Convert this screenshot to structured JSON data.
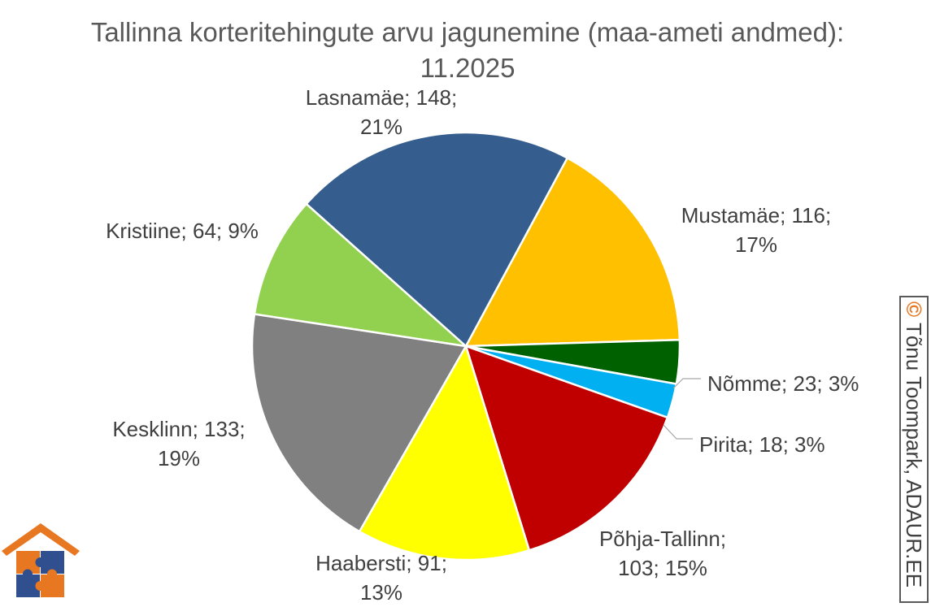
{
  "chart_data": {
    "type": "pie",
    "title": "Tallinna korteritehingute arvu jagunemine (maa-ameti andmed): 11.2025",
    "slices": [
      {
        "label": "Mustamäe",
        "value": 116,
        "percent": "17%",
        "color": "#FFC000",
        "data_label_lines": [
          "Mustamäe; 116;",
          "17%"
        ]
      },
      {
        "label": "Nõmme",
        "value": 23,
        "percent": "3%",
        "color": "#006100",
        "data_label_lines": [
          "Nõmme; 23; 3%"
        ]
      },
      {
        "label": "Pirita",
        "value": 18,
        "percent": "3%",
        "color": "#00B0F0",
        "data_label_lines": [
          "Pirita; 18; 3%"
        ]
      },
      {
        "label": "Põhja-Tallinn",
        "value": 103,
        "percent": "15%",
        "color": "#C00000",
        "data_label_lines": [
          "Põhja-Tallinn;",
          "103; 15%"
        ]
      },
      {
        "label": "Haabersti",
        "value": 91,
        "percent": "13%",
        "color": "#FFFF00",
        "data_label_lines": [
          "Haabersti; 91;",
          "13%"
        ]
      },
      {
        "label": "Kesklinn",
        "value": 133,
        "percent": "19%",
        "color": "#808080",
        "data_label_lines": [
          "Kesklinn; 133;",
          "19%"
        ]
      },
      {
        "label": "Kristiine",
        "value": 64,
        "percent": "9%",
        "color": "#92D050",
        "data_label_lines": [
          "Kristiine; 64; 9%"
        ]
      },
      {
        "label": "Lasnamäe",
        "value": 148,
        "percent": "21%",
        "color": "#355E8E",
        "data_label_lines": [
          "Lasnamäe; 148;",
          "21%"
        ]
      }
    ],
    "label_color": "#404040",
    "legend": "none"
  },
  "watermark": {
    "copyright_symbol": "©",
    "text": "Tõnu Toompark, ADAUR.EE"
  },
  "logo": {
    "icon": "house-puzzle-logo-icon",
    "colors": [
      "#E87722",
      "#2F4F8F"
    ]
  }
}
